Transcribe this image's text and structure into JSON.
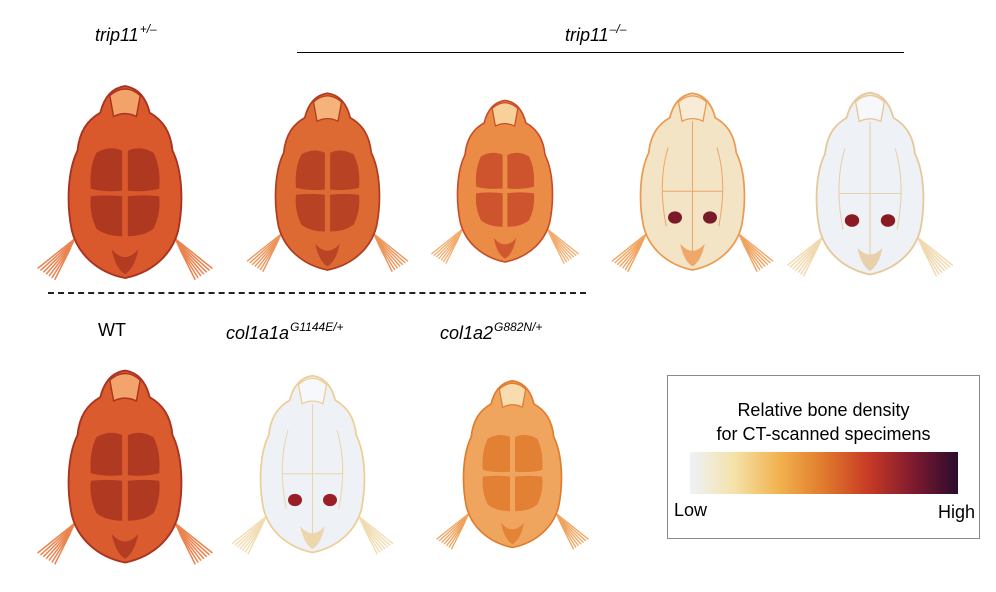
{
  "labels": {
    "trip11_het": {
      "gene": "trip11",
      "genotype": "+/–"
    },
    "trip11_hom": {
      "gene": "trip11",
      "genotype": "–/–"
    },
    "wt": "WT",
    "col1a1a": {
      "gene": "col1a1a",
      "genotype": "G1144E/+"
    },
    "col1a2": {
      "gene": "col1a2",
      "genotype": "G882N/+"
    }
  },
  "legend": {
    "title_line1": "Relative bone density",
    "title_line2": "for CT-scanned specimens",
    "low_label": "Low",
    "high_label": "High",
    "gradient_colors": [
      "#eef2f8",
      "#f4e2a8",
      "#f2b24e",
      "#e07a2c",
      "#c83a25",
      "#7e1a2e",
      "#2a0c2e"
    ]
  },
  "specimens": [
    {
      "name": "trip11-het-specimen",
      "density": "high",
      "colors": {
        "body": "#d9592c",
        "dark": "#a83320",
        "light": "#f3a26a",
        "fin": "#e8763c",
        "eye": "#9c2a22"
      }
    },
    {
      "name": "trip11-hom-specimen-1",
      "density": "high",
      "colors": {
        "body": "#dd6a33",
        "dark": "#b23c22",
        "light": "#f5b27a",
        "fin": "#ec8a48",
        "eye": "#a33024"
      }
    },
    {
      "name": "trip11-hom-specimen-2",
      "density": "medium",
      "colors": {
        "body": "#ea8c45",
        "dark": "#c84b28",
        "light": "#f8d09a",
        "fin": "#f1a35c",
        "eye": "#b23a26"
      }
    },
    {
      "name": "trip11-hom-specimen-3",
      "density": "low",
      "colors": {
        "body": "#f3e4c6",
        "dark": "#ec9a52",
        "light": "#f8ecd6",
        "fin": "#ef9a4e",
        "eye": "#7a1a28"
      }
    },
    {
      "name": "trip11-hom-specimen-4",
      "density": "very-low",
      "colors": {
        "body": "#eef1f6",
        "dark": "#e6c89a",
        "light": "#f6f8fb",
        "fin": "#efd5a8",
        "eye": "#8a1a22"
      }
    },
    {
      "name": "wt-specimen",
      "density": "high",
      "colors": {
        "body": "#da5b2d",
        "dark": "#a93420",
        "light": "#f3a46c",
        "fin": "#e8773d",
        "eye": "#9c2a22"
      }
    },
    {
      "name": "col1a1a-specimen",
      "density": "very-low",
      "colors": {
        "body": "#eef1f6",
        "dark": "#eccf98",
        "light": "#f7f8fb",
        "fin": "#f0d9aa",
        "eye": "#9a1e28"
      }
    },
    {
      "name": "col1a2-specimen",
      "density": "medium",
      "colors": {
        "body": "#f0a55e",
        "dark": "#e07a2c",
        "light": "#f8dcb0",
        "fin": "#ee9a4c",
        "eye": "#9a2226"
      }
    }
  ]
}
